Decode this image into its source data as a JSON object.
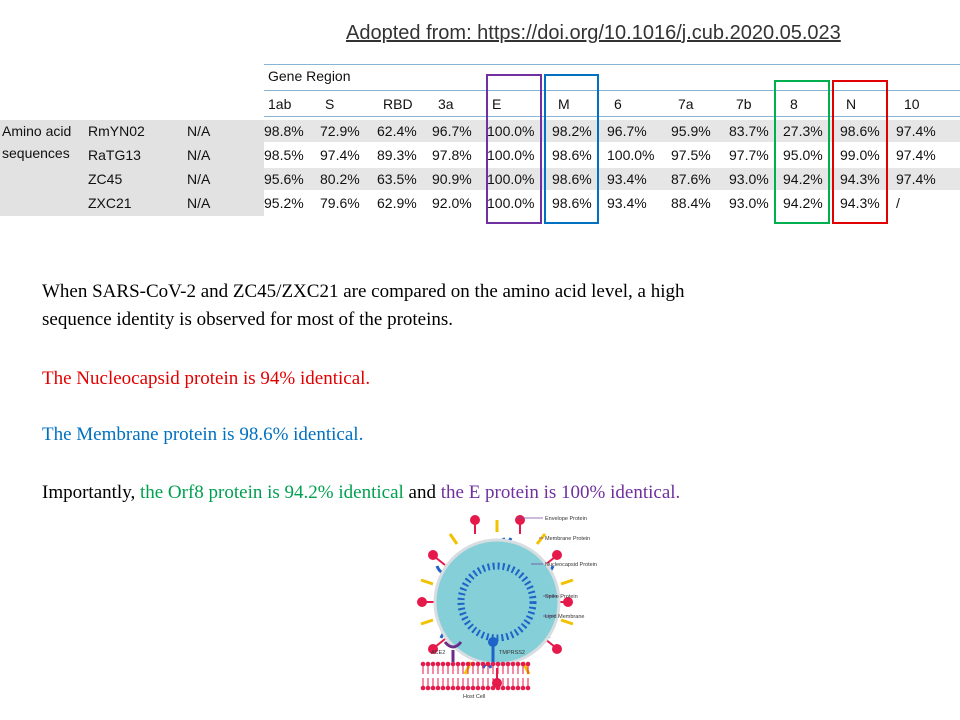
{
  "source_note": "Adopted from: https://doi.org/10.1016/j.cub.2020.05.023",
  "table": {
    "group_header": "Gene Region",
    "row_group_label_1": "Amino acid",
    "row_group_label_2": "sequences",
    "columns": [
      "1ab",
      "S",
      "RBD",
      "3a",
      "E",
      "M",
      "6",
      "7a",
      "7b",
      "8",
      "N",
      "10"
    ],
    "rows": [
      {
        "name": "RmYN02",
        "extra": "N/A",
        "values": [
          "98.8%",
          "72.9%",
          "62.4%",
          "96.7%",
          "100.0%",
          "98.2%",
          "96.7%",
          "95.9%",
          "83.7%",
          "27.3%",
          "98.6%",
          "97.4%"
        ]
      },
      {
        "name": "RaTG13",
        "extra": "N/A",
        "values": [
          "98.5%",
          "97.4%",
          "89.3%",
          "97.8%",
          "100.0%",
          "98.6%",
          "100.0%",
          "97.5%",
          "97.7%",
          "95.0%",
          "99.0%",
          "97.4%"
        ]
      },
      {
        "name": "ZC45",
        "extra": "N/A",
        "values": [
          "95.6%",
          "80.2%",
          "63.5%",
          "90.9%",
          "100.0%",
          "98.6%",
          "93.4%",
          "87.6%",
          "93.0%",
          "94.2%",
          "94.3%",
          "97.4%"
        ]
      },
      {
        "name": "ZXC21",
        "extra": "N/A",
        "values": [
          "95.2%",
          "79.6%",
          "62.9%",
          "92.0%",
          "100.0%",
          "98.6%",
          "93.4%",
          "88.4%",
          "93.0%",
          "94.2%",
          "94.3%",
          "/"
        ]
      }
    ],
    "highlight_colors": {
      "E": "#7030a0",
      "M": "#0070c0",
      "8": "#00b050",
      "N": "#e00000"
    }
  },
  "text": {
    "p1_line1": "When SARS-CoV-2  and ZC45/ZXC21 are compared on the amino acid level, a high",
    "p1_line2": "sequence identity is observed for most of the proteins.",
    "p2": "The Nucleocapsid protein is 94% identical.",
    "p3": "The Membrane protein is 98.6% identical.",
    "p4_a": "Importantly, ",
    "p4_b": "the Orf8 protein is 94.2% identical",
    "p4_c": " and ",
    "p4_d": "the E protein is 100% identical."
  },
  "colors": {
    "red": "#e00000",
    "blue": "#0070c0",
    "green": "#00a050",
    "purple": "#7030a0"
  },
  "diagram": {
    "labels": [
      "Envelope Protein",
      "Membrane Protein",
      "Nucleocapsid Protein",
      "Spike Protein",
      "Lipid Membrane"
    ],
    "ace2": "ACE2",
    "tmprss2": "TMPRSS2",
    "host_cell": "Host Cell"
  }
}
